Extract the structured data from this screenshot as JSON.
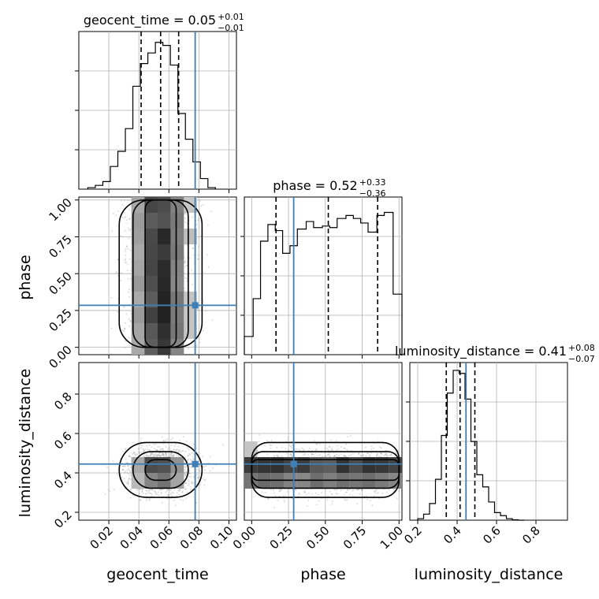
{
  "chart_data": {
    "type": "corner",
    "parameters": [
      {
        "name": "geocent_time",
        "label": "geocent_time",
        "range": [
          0.0,
          0.105
        ],
        "ticks": [
          "0.02",
          "0.04",
          "0.06",
          "0.08",
          "0.10"
        ],
        "tick_values": [
          0.02,
          0.04,
          0.06,
          0.08,
          0.1
        ],
        "truth": 0.0775,
        "median": 0.0545,
        "quantiles": [
          0.0415,
          0.0545,
          0.0665
        ],
        "title": {
          "main": "geocent_time = 0.05",
          "sup": "+0.01",
          "sub": "−0.01"
        },
        "hist": {
          "edges": [
            0.006,
            0.011,
            0.016,
            0.021,
            0.026,
            0.031,
            0.036,
            0.041,
            0.046,
            0.051,
            0.056,
            0.061,
            0.066,
            0.071,
            0.076,
            0.081,
            0.086,
            0.091
          ],
          "counts": [
            0.01,
            0.025,
            0.05,
            0.15,
            0.25,
            0.4,
            0.68,
            0.83,
            0.9,
            0.97,
            0.95,
            0.82,
            0.5,
            0.33,
            0.18,
            0.07,
            0.01
          ]
        }
      },
      {
        "name": "phase",
        "label": "phase",
        "range": [
          -0.05,
          1.02
        ],
        "ticks": [
          "0.00",
          "0.25",
          "0.50",
          "0.75",
          "1.00"
        ],
        "tick_values": [
          0.0,
          0.25,
          0.5,
          0.75,
          1.0
        ],
        "truth": 0.285,
        "median": 0.52,
        "quantiles": [
          0.165,
          0.52,
          0.855
        ],
        "title": {
          "main": "phase = 0.52",
          "sup": "+0.33",
          "sub": "−0.36"
        },
        "hist": {
          "edges": [
            -0.05,
            0.01,
            0.06,
            0.11,
            0.16,
            0.21,
            0.26,
            0.31,
            0.37,
            0.42,
            0.48,
            0.53,
            0.58,
            0.64,
            0.69,
            0.74,
            0.79,
            0.85,
            0.9,
            0.96,
            1.02
          ],
          "counts": [
            0.12,
            0.37,
            0.75,
            0.86,
            0.82,
            0.67,
            0.72,
            0.83,
            0.88,
            0.84,
            0.85,
            0.84,
            0.9,
            0.92,
            0.9,
            0.87,
            0.81,
            0.92,
            0.94,
            0.4
          ]
        }
      },
      {
        "name": "luminosity_distance",
        "label": "luminosity_distance",
        "range": [
          0.16,
          0.96
        ],
        "ticks": [
          "0.2",
          "0.4",
          "0.6",
          "0.8"
        ],
        "tick_values": [
          0.2,
          0.4,
          0.6,
          0.8
        ],
        "truth": 0.445,
        "median": 0.415,
        "quantiles": [
          0.345,
          0.415,
          0.49
        ],
        "title": {
          "main": "luminosity_distance = 0.41",
          "sup": "+0.08",
          "sub": "−0.07"
        },
        "hist": {
          "edges": [
            0.2,
            0.23,
            0.26,
            0.29,
            0.32,
            0.35,
            0.38,
            0.41,
            0.44,
            0.47,
            0.5,
            0.53,
            0.56,
            0.59,
            0.62,
            0.65,
            0.68,
            0.71,
            0.74
          ],
          "counts": [
            0.01,
            0.04,
            0.11,
            0.27,
            0.56,
            0.84,
            0.99,
            0.97,
            0.8,
            0.52,
            0.3,
            0.22,
            0.12,
            0.05,
            0.03,
            0.01,
            0.003,
            0.0
          ]
        }
      }
    ],
    "grid": true,
    "truth_color": "#3f7fb5"
  },
  "texts": {
    "xlabel_0": "geocent_time",
    "xlabel_1": "phase",
    "xlabel_2": "luminosity_distance",
    "ylabel_1": "phase",
    "ylabel_2": "luminosity_distance"
  }
}
